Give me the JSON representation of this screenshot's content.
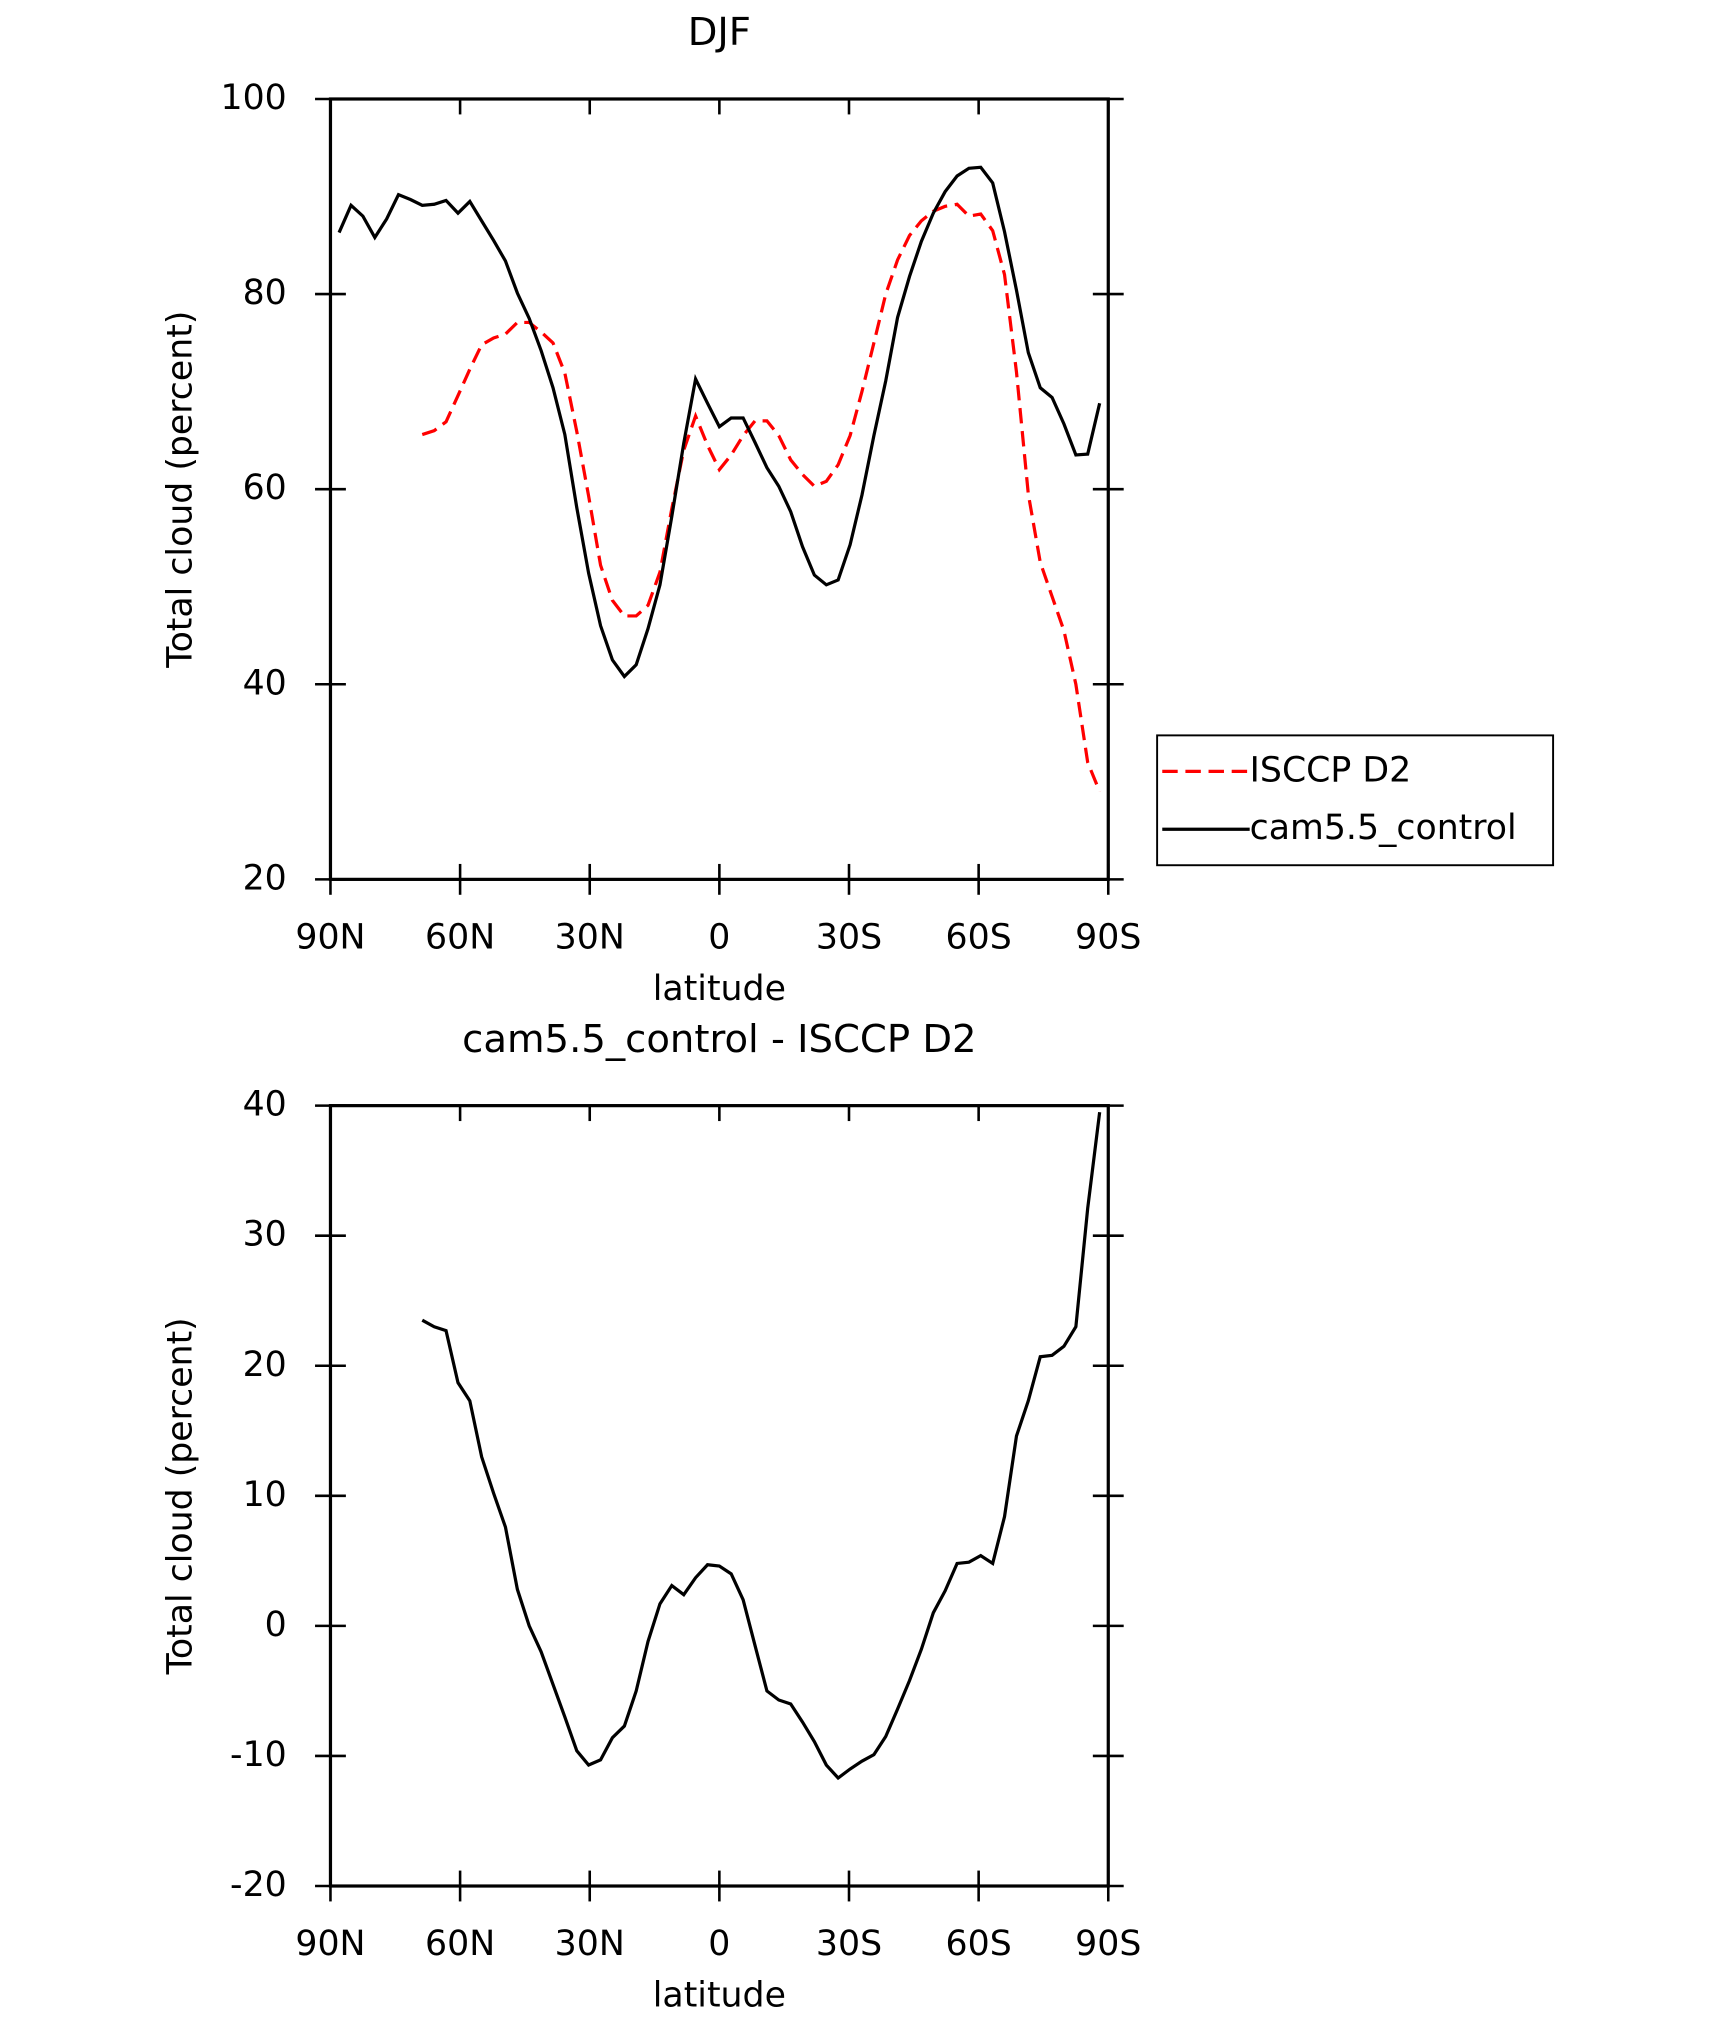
{
  "chart_data": [
    {
      "type": "line",
      "title": "DJF",
      "xlabel": "latitude",
      "ylabel": "Total cloud (percent)",
      "x": [
        88,
        85.25,
        82.5,
        79.75,
        77,
        74.25,
        71.5,
        68.75,
        66,
        63.25,
        60.5,
        57.75,
        55,
        52.25,
        49.5,
        46.75,
        44,
        41.25,
        38.5,
        35.75,
        33,
        30.25,
        27.5,
        24.75,
        22,
        19.25,
        16.5,
        13.75,
        11,
        8.25,
        5.5,
        2.75,
        0,
        -2.75,
        -5.5,
        -8.25,
        -11,
        -13.75,
        -16.5,
        -19.25,
        -22,
        -24.75,
        -27.5,
        -30.25,
        -33,
        -35.75,
        -38.5,
        -41.25,
        -44,
        -46.75,
        -49.5,
        -52.25,
        -55,
        -57.75,
        -60.5,
        -63.25,
        -66,
        -68.75,
        -71.5,
        -74.25,
        -77,
        -79.75,
        -82.5,
        -85.25,
        -88
      ],
      "series": [
        {
          "name": "ISCCP D2",
          "color": "#ff0000",
          "dash": true,
          "values": [
            null,
            null,
            null,
            null,
            null,
            null,
            null,
            65.6,
            66.0,
            66.9,
            69.6,
            72.3,
            74.8,
            75.5,
            75.9,
            77.1,
            77.1,
            76.1,
            75.0,
            71.9,
            65.9,
            59.3,
            52.2,
            48.6,
            47.0,
            47.0,
            48.1,
            51.5,
            58.0,
            64.0,
            67.5,
            64.5,
            62.0,
            63.5,
            65.5,
            67.0,
            67.0,
            65.5,
            63.0,
            61.5,
            60.3,
            60.8,
            62.5,
            65.5,
            70.0,
            75.0,
            80.0,
            83.5,
            86.0,
            87.5,
            88.5,
            89.0,
            89.2,
            88.0,
            88.2,
            86.5,
            82.0,
            72.0,
            59.5,
            52.5,
            49.0,
            45.5,
            40.0,
            32.0,
            29.0
          ]
        },
        {
          "name": "cam5.5_control",
          "color": "#000000",
          "dash": false,
          "values": [
            86.3,
            89.1,
            88.0,
            85.8,
            87.7,
            90.2,
            89.7,
            89.1,
            89.2,
            89.6,
            88.3,
            89.5,
            87.5,
            85.5,
            83.4,
            80.1,
            77.5,
            74.2,
            70.4,
            65.6,
            58.1,
            51.4,
            46.0,
            42.5,
            40.8,
            42.0,
            45.7,
            50.2,
            57.2,
            64.7,
            71.3,
            68.8,
            66.4,
            67.3,
            67.3,
            64.8,
            62.2,
            60.3,
            57.7,
            54.1,
            51.2,
            50.2,
            50.7,
            54.3,
            59.4,
            65.5,
            71.1,
            77.6,
            81.8,
            85.4,
            88.3,
            90.5,
            92.1,
            92.9,
            93.0,
            91.4,
            86.4,
            80.4,
            74.0,
            70.4,
            69.4,
            66.7,
            63.5,
            63.6,
            68.8
          ]
        }
      ],
      "xlim": [
        90,
        -90
      ],
      "ylim": [
        20,
        100
      ],
      "xticks": [
        {
          "value": 90,
          "label": "90N"
        },
        {
          "value": 60,
          "label": "60N"
        },
        {
          "value": 30,
          "label": "30N"
        },
        0,
        {
          "value": -30,
          "label": "30S"
        },
        {
          "value": -60,
          "label": "60S"
        },
        {
          "value": -90,
          "label": "90S"
        }
      ],
      "yticks": [
        20,
        40,
        60,
        80,
        100
      ],
      "legend": "right"
    },
    {
      "type": "line",
      "title": "cam5.5_control - ISCCP D2",
      "xlabel": "latitude",
      "ylabel": "Total cloud (percent)",
      "x": [
        88,
        85.25,
        82.5,
        79.75,
        77,
        74.25,
        71.5,
        68.75,
        66,
        63.25,
        60.5,
        57.75,
        55,
        52.25,
        49.5,
        46.75,
        44,
        41.25,
        38.5,
        35.75,
        33,
        30.25,
        27.5,
        24.75,
        22,
        19.25,
        16.5,
        13.75,
        11,
        8.25,
        5.5,
        2.75,
        0,
        -2.75,
        -5.5,
        -8.25,
        -11,
        -13.75,
        -16.5,
        -19.25,
        -22,
        -24.75,
        -27.5,
        -30.25,
        -33,
        -35.75,
        -38.5,
        -41.25,
        -44,
        -46.75,
        -49.5,
        -52.25,
        -55,
        -57.75,
        -60.5,
        -63.25,
        -66,
        -68.75,
        -71.5,
        -74.25,
        -77,
        -79.75,
        -82.5,
        -85.25,
        -88
      ],
      "series": [
        {
          "color": "#000000",
          "dash": false,
          "values": [
            null,
            null,
            null,
            null,
            null,
            null,
            null,
            23.5,
            23.0,
            22.7,
            18.7,
            17.3,
            13.0,
            10.2,
            7.6,
            2.8,
            0,
            -2.0,
            -4.5,
            -7.0,
            -9.6,
            -10.7,
            -10.3,
            -8.6,
            -7.7,
            -5.0,
            -1.2,
            1.7,
            3.1,
            2.4,
            3.7,
            4.7,
            4.6,
            4.0,
            2.0,
            -1.5,
            -5.0,
            -5.7,
            -6.0,
            -7.4,
            -8.9,
            -10.7,
            -11.7,
            -11.0,
            -10.4,
            -9.9,
            -8.5,
            -6.4,
            -4.2,
            -1.8,
            1.0,
            2.7,
            4.8,
            4.9,
            5.4,
            4.8,
            8.4,
            14.6,
            17.3,
            20.7,
            20.8,
            21.5,
            23.0,
            32.1,
            39.5
          ]
        }
      ],
      "xlim": [
        90,
        -90
      ],
      "ylim": [
        -20,
        40
      ],
      "xticks": [
        {
          "value": 90,
          "label": "90N"
        },
        {
          "value": 60,
          "label": "60N"
        },
        {
          "value": 30,
          "label": "30N"
        },
        0,
        {
          "value": -30,
          "label": "30S"
        },
        {
          "value": -60,
          "label": "60S"
        },
        {
          "value": -90,
          "label": "90S"
        }
      ],
      "yticks": [
        -20,
        -10,
        0,
        10,
        20,
        30,
        40
      ]
    }
  ]
}
